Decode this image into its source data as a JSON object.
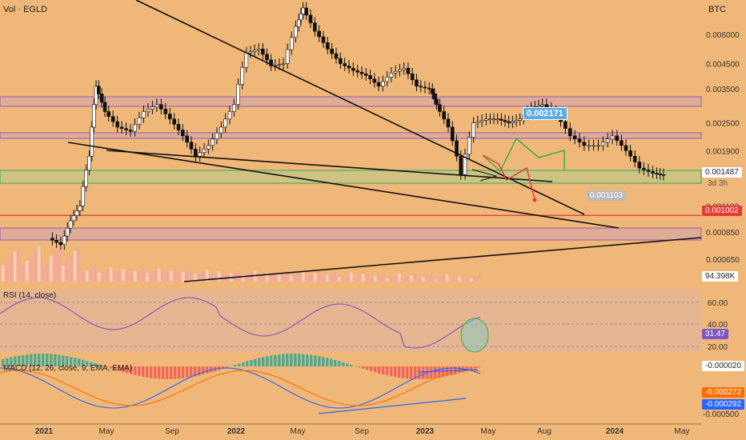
{
  "header": {
    "title": "Vol · EGLD",
    "quote": "BTC",
    "rsi_label": "RSI (14, close)",
    "macd_label": "MACD (12, 26, close, 9, EMA, EMA)"
  },
  "chart_data": {
    "type": "candlestick",
    "symbol": "EGLD/BTC",
    "log_scale": true,
    "x_ticks": [
      "2021",
      "May",
      "Sep",
      "2022",
      "May",
      "Sep",
      "2023",
      "May",
      "Aug",
      "2024",
      "May"
    ],
    "price_ticks": [
      "0.006000",
      "0.004500",
      "0.003500",
      "0.002500",
      "0.001900",
      "0.001100",
      "0.000850",
      "0.000650"
    ],
    "last_price": "0.001487",
    "countdown": "3d 3h",
    "red_level": "0.001002",
    "target_up": "0.002171",
    "target_down": "0.001103",
    "volume_last": "94.398K",
    "rsi": {
      "ticks": [
        "60.00",
        "40.00",
        "20.00"
      ],
      "last": "31.47"
    },
    "macd": {
      "ticks": [
        "-0.000020",
        "-0.000500"
      ],
      "signal_last": "-0.000272",
      "macd_last": "-0.000292"
    },
    "colors": {
      "up": "#26a69a",
      "down": "#ef5350",
      "trend": "#111111",
      "zone": "#9b59b6",
      "support": "#27ae60",
      "red_line": "#e53935",
      "macd_line": "#2962ff",
      "signal_line": "#ff6d00"
    },
    "price_path": [
      [
        0.1,
        0.0008
      ],
      [
        0.3,
        0.00075
      ],
      [
        0.45,
        0.00095
      ],
      [
        0.6,
        0.0011
      ],
      [
        0.75,
        0.0018
      ],
      [
        0.85,
        0.0036
      ],
      [
        1.0,
        0.0028
      ],
      [
        1.2,
        0.0024
      ],
      [
        1.4,
        0.0023
      ],
      [
        1.6,
        0.0028
      ],
      [
        1.8,
        0.003
      ],
      [
        2.0,
        0.0026
      ],
      [
        2.2,
        0.0022
      ],
      [
        2.4,
        0.0018
      ],
      [
        2.6,
        0.002
      ],
      [
        2.8,
        0.0024
      ],
      [
        3.0,
        0.003
      ],
      [
        3.2,
        0.005
      ],
      [
        3.4,
        0.0052
      ],
      [
        3.6,
        0.0044
      ],
      [
        3.8,
        0.0045
      ],
      [
        4.0,
        0.0065
      ],
      [
        4.1,
        0.0078
      ],
      [
        4.3,
        0.0062
      ],
      [
        4.5,
        0.0052
      ],
      [
        4.7,
        0.0045
      ],
      [
        4.9,
        0.0042
      ],
      [
        5.1,
        0.004
      ],
      [
        5.3,
        0.0036
      ],
      [
        5.5,
        0.0041
      ],
      [
        5.7,
        0.0043
      ],
      [
        5.9,
        0.0036
      ],
      [
        6.1,
        0.0035
      ],
      [
        6.2,
        0.003
      ],
      [
        6.4,
        0.0024
      ],
      [
        6.6,
        0.0015
      ],
      [
        6.8,
        0.0025
      ],
      [
        7.0,
        0.0026
      ],
      [
        7.2,
        0.0026
      ],
      [
        7.4,
        0.0025
      ],
      [
        7.6,
        0.0026
      ],
      [
        7.8,
        0.0029
      ],
      [
        8.0,
        0.003
      ],
      [
        8.2,
        0.0027
      ],
      [
        8.4,
        0.0022
      ],
      [
        8.6,
        0.002
      ],
      [
        8.8,
        0.002
      ],
      [
        9.0,
        0.0022
      ],
      [
        9.2,
        0.0019
      ],
      [
        9.4,
        0.0016
      ],
      [
        9.6,
        0.00152
      ],
      [
        9.75,
        0.00149
      ]
    ]
  }
}
